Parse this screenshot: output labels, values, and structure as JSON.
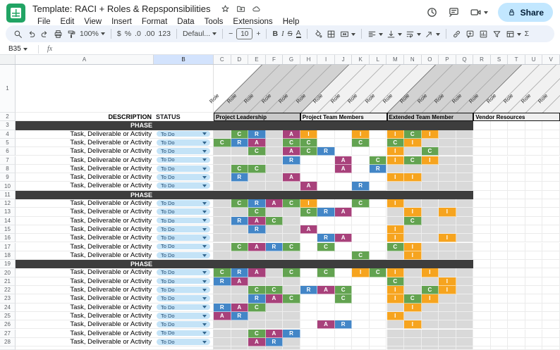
{
  "titlebar": {
    "title": "Template: RACI + Roles & Repsponsibilities",
    "menus": [
      "File",
      "Edit",
      "View",
      "Insert",
      "Format",
      "Data",
      "Tools",
      "Extensions",
      "Help"
    ],
    "share_label": "Share"
  },
  "toolbar": {
    "zoom_value": "100%",
    "currency_label": "$",
    "percent_label": "%",
    "decrease_decimal_label": ".0",
    "increase_decimal_label": ".00",
    "more_formats_label": "123",
    "font_family_value": "Defaul...",
    "decrease_font_label": "−",
    "font_size_value": "10",
    "increase_font_label": "+",
    "bold_label": "B",
    "italic_label": "I",
    "strikethrough_label": "S",
    "text_color_label": "A",
    "functions_label": "Σ"
  },
  "formula_bar": {
    "name_box_value": "B35",
    "fx_label": "fx"
  },
  "sheet": {
    "column_letters": [
      "A",
      "B",
      "C",
      "D",
      "E",
      "F",
      "G",
      "H",
      "I",
      "J",
      "K",
      "L",
      "M",
      "N",
      "O",
      "P",
      "Q",
      "R",
      "S",
      "T",
      "U",
      "V"
    ],
    "selected_column": "B",
    "visible_rows": 28,
    "role_header_label": "Role",
    "groups": [
      {
        "label": "Project Leadership",
        "shade": "dark"
      },
      {
        "label": "Project Team Members",
        "shade": "light"
      },
      {
        "label": "Extended Team Member",
        "shade": "dark"
      },
      {
        "label": "Vendor Resources",
        "shade": "light"
      }
    ],
    "description_header": "DESCRIPTION",
    "status_header": "STATUS",
    "phase_label": "PHASE",
    "task_label": "Task, Deliverable or Activity",
    "status_value": "To Do",
    "rows": [
      {
        "n": 3,
        "type": "phase"
      },
      {
        "n": 4,
        "type": "task",
        "marks": {
          "D": "C",
          "E": "R",
          "G": "A",
          "H": "I",
          "K": "I",
          "M": "I",
          "N": "C",
          "O": "I"
        }
      },
      {
        "n": 5,
        "type": "task",
        "marks": {
          "C": "C",
          "D": "R",
          "E": "A",
          "G": "C",
          "H": "C",
          "K": "C",
          "M": "C",
          "N": "I"
        }
      },
      {
        "n": 6,
        "type": "task",
        "marks": {
          "E": "C",
          "G": "A",
          "H": "C",
          "I": "R",
          "M": "I",
          "O": "C"
        }
      },
      {
        "n": 7,
        "type": "task",
        "marks": {
          "G": "R",
          "J": "A",
          "L": "C",
          "M": "I",
          "N": "C",
          "O": "I"
        }
      },
      {
        "n": 8,
        "type": "task",
        "marks": {
          "D": "C",
          "E": "C",
          "J": "A",
          "L": "R"
        }
      },
      {
        "n": 9,
        "type": "task",
        "marks": {
          "D": "R",
          "G": "A",
          "M": "I",
          "N": "I"
        }
      },
      {
        "n": 10,
        "type": "task",
        "marks": {
          "H": "A",
          "K": "R"
        }
      },
      {
        "n": 11,
        "type": "phase"
      },
      {
        "n": 12,
        "type": "task",
        "marks": {
          "D": "C",
          "E": "R",
          "F": "A",
          "G": "C",
          "H": "I",
          "K": "C",
          "M": "I"
        }
      },
      {
        "n": 13,
        "type": "task",
        "marks": {
          "E": "C",
          "H": "C",
          "I": "R",
          "J": "A",
          "N": "I",
          "P": "I"
        }
      },
      {
        "n": 14,
        "type": "task",
        "marks": {
          "D": "R",
          "E": "A",
          "F": "C",
          "N": "C"
        }
      },
      {
        "n": 15,
        "type": "task",
        "marks": {
          "E": "R",
          "H": "A",
          "M": "I"
        }
      },
      {
        "n": 16,
        "type": "task",
        "marks": {
          "I": "R",
          "J": "A",
          "M": "I",
          "P": "I"
        }
      },
      {
        "n": 17,
        "type": "task",
        "marks": {
          "D": "C",
          "E": "A",
          "F": "R",
          "G": "C",
          "I": "C",
          "M": "C",
          "N": "I"
        }
      },
      {
        "n": 18,
        "type": "task",
        "marks": {
          "K": "C",
          "N": "I"
        }
      },
      {
        "n": 19,
        "type": "phase"
      },
      {
        "n": 20,
        "type": "task",
        "marks": {
          "C": "C",
          "D": "R",
          "E": "A",
          "G": "C",
          "I": "C",
          "K": "I",
          "L": "C",
          "M": "I",
          "O": "I"
        }
      },
      {
        "n": 21,
        "type": "task",
        "marks": {
          "C": "R",
          "D": "A",
          "M": "C",
          "P": "I"
        }
      },
      {
        "n": 22,
        "type": "task",
        "marks": {
          "E": "C",
          "F": "C",
          "H": "R",
          "I": "A",
          "J": "C",
          "M": "I",
          "O": "C",
          "P": "I"
        }
      },
      {
        "n": 23,
        "type": "task",
        "marks": {
          "E": "R",
          "F": "A",
          "G": "C",
          "J": "C",
          "M": "I",
          "N": "C",
          "O": "I"
        }
      },
      {
        "n": 24,
        "type": "task",
        "marks": {
          "C": "R",
          "D": "A",
          "E": "C",
          "N": "I"
        }
      },
      {
        "n": 25,
        "type": "task",
        "marks": {
          "C": "A",
          "D": "R",
          "M": "I"
        }
      },
      {
        "n": 26,
        "type": "task",
        "marks": {
          "I": "A",
          "J": "R",
          "N": "I"
        }
      },
      {
        "n": 27,
        "type": "task",
        "marks": {
          "E": "C",
          "F": "A",
          "G": "R"
        }
      },
      {
        "n": 28,
        "type": "task",
        "marks": {
          "E": "A",
          "F": "R"
        }
      }
    ]
  },
  "colors": {
    "raci": {
      "R": "#4386c7",
      "A": "#a8417b",
      "C": "#63a351",
      "I": "#f6a41f"
    },
    "phase_bar": "#3d3d3d",
    "group_header_dark": "#c9c9c9",
    "group_header_light": "#f0f0f0",
    "stripe_dark": "#d2d2d2",
    "stripe_light": "#f1f1f1",
    "body_gray": "#d9d9d9",
    "selected_column_header": "#d3e3fd",
    "status_pill_bg": "#c4e3f7",
    "status_pill_text": "#1d476e",
    "share_button_bg": "#c2e7ff",
    "share_button_text": "#001d35",
    "logo_green": "#21a464",
    "toolbar_bg": "#edf2fa"
  }
}
